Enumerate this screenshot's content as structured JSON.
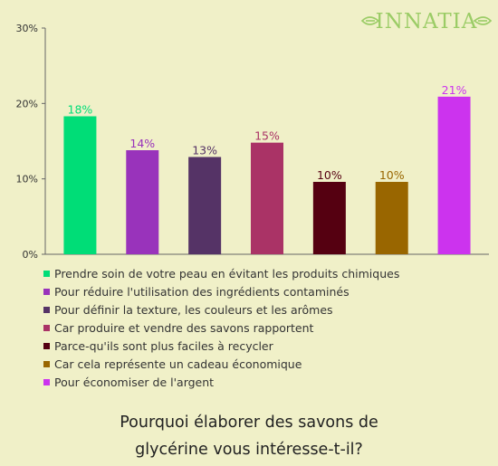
{
  "logo": {
    "text": "INNATIA",
    "color": "#9bcc66"
  },
  "chart_data": {
    "type": "bar",
    "title": "Pourquoi élaborer des savons de glycérine vous intéresse-t-il?",
    "title_lines": [
      "Pourquoi élaborer des savons de",
      "glycérine vous intéresse-t-il?"
    ],
    "ylim": [
      0,
      30
    ],
    "y_ticks": [
      0,
      10,
      20,
      30
    ],
    "y_tick_labels": [
      "0%",
      "10%",
      "20%",
      "30%"
    ],
    "grid": false,
    "legend_position": "bottom",
    "categories": [
      "Prendre soin de votre peau en évitant les produits chimiques",
      "Pour réduire l'utilisation des ingrédients contaminés",
      "Pour définir la texture, les couleurs et les arômes",
      "Car produire et vendre des savons rapportent",
      "Parce-qu'ils sont plus faciles à recycler",
      "Car cela représente un cadeau économique",
      "Pour économiser de l'argent"
    ],
    "values": [
      18.3,
      13.8,
      12.9,
      14.8,
      9.6,
      9.6,
      20.9
    ],
    "data_labels": [
      "18%",
      "14%",
      "13%",
      "15%",
      "10%",
      "10%",
      "21%"
    ],
    "colors": [
      "#00dd77",
      "#9933bb",
      "#553366",
      "#aa3366",
      "#550011",
      "#996600",
      "#cc33ee"
    ]
  }
}
